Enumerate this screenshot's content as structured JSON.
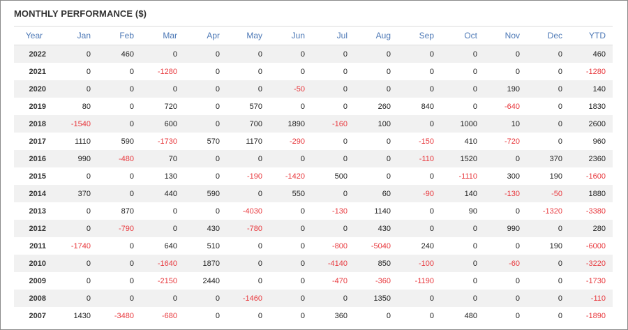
{
  "title": "MONTHLY PERFORMANCE ($)",
  "colors": {
    "header": "#4b77b5",
    "negative": "#e8383d",
    "positive": "#222222",
    "stripe": "#f1f1f1"
  },
  "columns": [
    "Year",
    "Jan",
    "Feb",
    "Mar",
    "Apr",
    "May",
    "Jun",
    "Jul",
    "Aug",
    "Sep",
    "Oct",
    "Nov",
    "Dec",
    "YTD"
  ],
  "rows": [
    {
      "year": "2022",
      "values": [
        "0",
        "460",
        "0",
        "0",
        "0",
        "0",
        "0",
        "0",
        "0",
        "0",
        "0",
        "0",
        "460"
      ]
    },
    {
      "year": "2021",
      "values": [
        "0",
        "0",
        "-1280",
        "0",
        "0",
        "0",
        "0",
        "0",
        "0",
        "0",
        "0",
        "0",
        "-1280"
      ]
    },
    {
      "year": "2020",
      "values": [
        "0",
        "0",
        "0",
        "0",
        "0",
        "-50",
        "0",
        "0",
        "0",
        "0",
        "190",
        "0",
        "140"
      ]
    },
    {
      "year": "2019",
      "values": [
        "80",
        "0",
        "720",
        "0",
        "570",
        "0",
        "0",
        "260",
        "840",
        "0",
        "-640",
        "0",
        "1830"
      ]
    },
    {
      "year": "2018",
      "values": [
        "-1540",
        "0",
        "600",
        "0",
        "700",
        "1890",
        "-160",
        "100",
        "0",
        "1000",
        "10",
        "0",
        "2600"
      ]
    },
    {
      "year": "2017",
      "values": [
        "1110",
        "590",
        "-1730",
        "570",
        "1170",
        "-290",
        "0",
        "0",
        "-150",
        "410",
        "-720",
        "0",
        "960"
      ]
    },
    {
      "year": "2016",
      "values": [
        "990",
        "-480",
        "70",
        "0",
        "0",
        "0",
        "0",
        "0",
        "-110",
        "1520",
        "0",
        "370",
        "2360"
      ]
    },
    {
      "year": "2015",
      "values": [
        "0",
        "0",
        "130",
        "0",
        "-190",
        "-1420",
        "500",
        "0",
        "0",
        "-1110",
        "300",
        "190",
        "-1600"
      ]
    },
    {
      "year": "2014",
      "values": [
        "370",
        "0",
        "440",
        "590",
        "0",
        "550",
        "0",
        "60",
        "-90",
        "140",
        "-130",
        "-50",
        "1880"
      ]
    },
    {
      "year": "2013",
      "values": [
        "0",
        "870",
        "0",
        "0",
        "-4030",
        "0",
        "-130",
        "1140",
        "0",
        "90",
        "0",
        "-1320",
        "-3380"
      ]
    },
    {
      "year": "2012",
      "values": [
        "0",
        "-790",
        "0",
        "430",
        "-780",
        "0",
        "0",
        "430",
        "0",
        "0",
        "990",
        "0",
        "280"
      ]
    },
    {
      "year": "2011",
      "values": [
        "-1740",
        "0",
        "640",
        "510",
        "0",
        "0",
        "-800",
        "-5040",
        "240",
        "0",
        "0",
        "190",
        "-6000"
      ]
    },
    {
      "year": "2010",
      "values": [
        "0",
        "0",
        "-1640",
        "1870",
        "0",
        "0",
        "-4140",
        "850",
        "-100",
        "0",
        "-60",
        "0",
        "-3220"
      ]
    },
    {
      "year": "2009",
      "values": [
        "0",
        "0",
        "-2150",
        "2440",
        "0",
        "0",
        "-470",
        "-360",
        "-1190",
        "0",
        "0",
        "0",
        "-1730"
      ]
    },
    {
      "year": "2008",
      "values": [
        "0",
        "0",
        "0",
        "0",
        "-1460",
        "0",
        "0",
        "1350",
        "0",
        "0",
        "0",
        "0",
        "-110"
      ]
    },
    {
      "year": "2007",
      "values": [
        "1430",
        "-3480",
        "-680",
        "0",
        "0",
        "0",
        "360",
        "0",
        "0",
        "480",
        "0",
        "0",
        "-1890"
      ]
    }
  ]
}
